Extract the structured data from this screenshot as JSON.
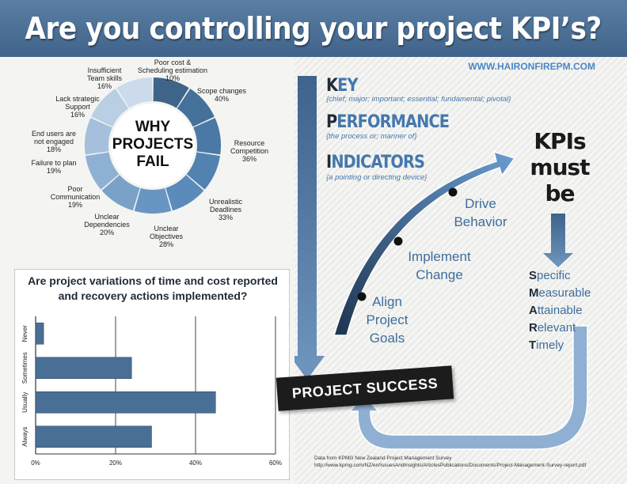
{
  "header": {
    "title": "Are you controlling your project KPI’s?"
  },
  "website": "WWW.HAIRONFIREPM.COM",
  "kpi_key": {
    "items": [
      {
        "first_letter": "K",
        "rest": "EY",
        "definition": "{chief; major; important; essential; fundamental; pivotal}"
      },
      {
        "first_letter": "P",
        "rest": "ERFORMANCE",
        "definition": "{the process or; manner of}"
      },
      {
        "first_letter": "I",
        "rest": "NDICATORS",
        "definition": "{a pointing or directing device}"
      }
    ]
  },
  "stages": [
    {
      "line1": "Align",
      "line2": "Project",
      "line3": "Goals"
    },
    {
      "line1": "Implement",
      "line2": "Change"
    },
    {
      "line1": "Drive",
      "line2": "Behavior"
    }
  ],
  "kpis_must_be": {
    "line1": "KPIs",
    "line2": "must",
    "line3": "be"
  },
  "smart": [
    {
      "letter": "S",
      "rest": "pecific"
    },
    {
      "letter": "M",
      "rest": "easurable"
    },
    {
      "letter": "A",
      "rest": "ttainable"
    },
    {
      "letter": "R",
      "rest": "elevant"
    },
    {
      "letter": "T",
      "rest": "imely"
    }
  ],
  "project_success": "PROJECT SUCCESS",
  "source": {
    "line1": "Data from KPMG New Zealand Project Management Survey",
    "line2": "http://www.kpmg.com/NZ/en/IssuesAndInsights/ArticlesPublications/Documents/Project-Management-Survey-report.pdf"
  },
  "colors": {
    "header": "#4a6f95",
    "accent": "#4478ad",
    "dark": "#1c1c1c",
    "bar": "#4a6f95"
  },
  "chart_data": [
    {
      "type": "pie",
      "style": "donut",
      "center_label": [
        "WHY",
        "PROJECTS",
        "FAIL"
      ],
      "slices": [
        {
          "label": [
            "Scope changes"
          ],
          "value": 40,
          "display": "40%",
          "color": "#3e6589"
        },
        {
          "label": [
            "Resource",
            "Competition"
          ],
          "value": 36,
          "display": "36%",
          "color": "#44709a"
        },
        {
          "label": [
            "Unrealistic",
            "Deadlines"
          ],
          "value": 33,
          "display": "33%",
          "color": "#4a79a6"
        },
        {
          "label": [
            "Unclear",
            "Objectives"
          ],
          "value": 28,
          "display": "28%",
          "color": "#5282b0"
        },
        {
          "label": [
            "Unclear",
            "Dependencies"
          ],
          "value": 20,
          "display": "20%",
          "color": "#5a8bba"
        },
        {
          "label": [
            "Poor",
            "Communication"
          ],
          "value": 19,
          "display": "19%",
          "color": "#6896c2"
        },
        {
          "label": [
            "Failure to plan"
          ],
          "value": 19,
          "display": "19%",
          "color": "#7aa2c9"
        },
        {
          "label": [
            "End users are",
            "not engaged"
          ],
          "value": 18,
          "display": "18%",
          "color": "#8eb0d2"
        },
        {
          "label": [
            "Lack strategic",
            "Support"
          ],
          "value": 16,
          "display": "16%",
          "color": "#a4c0dc"
        },
        {
          "label": [
            "Insufficient",
            "Team skills"
          ],
          "value": 16,
          "display": "16%",
          "color": "#b8cfe4"
        },
        {
          "label": [
            "Poor cost &",
            "Scheduling estimation"
          ],
          "value": 10,
          "display": "10%",
          "color": "#cbdbeb"
        }
      ]
    },
    {
      "type": "bar",
      "orientation": "horizontal",
      "title": "Are project variations of time and cost reported and recovery actions implemented?",
      "title_lines": [
        "Are project variations of time and cost reported",
        "and recovery actions implemented?"
      ],
      "categories": [
        "Never",
        "Sometimes",
        "Usually",
        "Always"
      ],
      "values": [
        2,
        24,
        45,
        29
      ],
      "xlim": [
        0,
        60
      ],
      "xticks": [
        "0%",
        "20%",
        "40%",
        "60%"
      ],
      "grid": true
    }
  ]
}
